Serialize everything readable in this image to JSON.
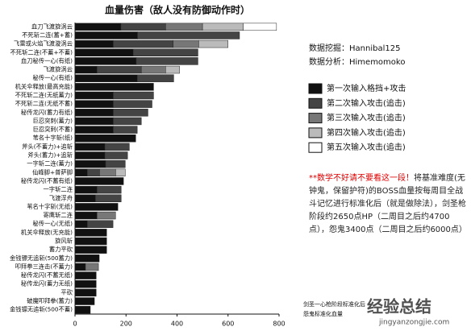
{
  "chart_data": {
    "type": "stacked_barh",
    "title": "血量伤害（敌人没有防御动作时）",
    "categories": [
      "血刀飞渡旋涡云",
      "不死斩二连(蓄+蓄)",
      "飞雷或火焰飞渡漩涡云",
      "不死斩二连(不蓄+不蓄)",
      "血刀秘传一心(有纸)",
      "飞渡旋涡云",
      "秘传一心(有纸)",
      "机关伞释放(最高充能)",
      "不死斩二连(无纸蓄力)",
      "不死斩二连(无纸不蓄)",
      "秘传龙闪(蓄力有纸)",
      "巨忍突刺(蓄力)",
      "巨忍突刺(不蓄)",
      "苇名十字斩(纸)",
      "斧头(不蓄力)+追斩",
      "斧头(蓄力)+追斩",
      "一字斩二连(蓄力)",
      "仙峰脚+普萨脚",
      "秘传龙闪(不蓄有纸)",
      "一字斩二连",
      "飞渡浮舟",
      "苇名十字斩(无纸)",
      "寄鹰斩二连",
      "秘传一心(无纸)",
      "机关伞释放(无充能)",
      "旋风斩",
      "蓄力平砍",
      "金钱镖无追斩(500蓄力)",
      "叩拜拳三连击(不蓄力)",
      "秘传龙闪(不蓄无纸)",
      "秘传龙闪(蓄力无纸)",
      "平砍",
      "破魔叩拜拳(蓄力)",
      "金钱镖无追斩(500不蓄)"
    ],
    "series": [
      {
        "name": "第一次输入格挡+攻击",
        "color": "#111111",
        "values": [
          180,
          245,
          150,
          228,
          240,
          86,
          244,
          308,
          150,
          150,
          150,
          150,
          150,
          238,
          117,
          117,
          120,
          48,
          190,
          86,
          80,
          168,
          86,
          48,
          124,
          124,
          124,
          95,
          41,
          83,
          83,
          83,
          76,
          60
        ]
      },
      {
        "name": "第二次输入攻击(追击)",
        "color": "#444444",
        "values": [
          175,
          400,
          235,
          254,
          242,
          174,
          143,
          null,
          158,
          152,
          136,
          110,
          94,
          null,
          96,
          89,
          77,
          48,
          null,
          95,
          101,
          null,
          null,
          101,
          null,
          null,
          null,
          null,
          null,
          null,
          null,
          null,
          null,
          null
        ]
      },
      {
        "name": "第三次输入攻击(追击)",
        "color": "#777777",
        "values": [
          145,
          null,
          100,
          null,
          null,
          95,
          null,
          null,
          null,
          null,
          null,
          null,
          null,
          null,
          null,
          null,
          null,
          63,
          null,
          null,
          null,
          null,
          73,
          null,
          null,
          null,
          null,
          null,
          51,
          null,
          null,
          null,
          null,
          null
        ]
      },
      {
        "name": "第四次输入攻击(追击)",
        "color": "#bbbbbb",
        "values": [
          160,
          null,
          115,
          null,
          null,
          55,
          null,
          null,
          null,
          null,
          null,
          null,
          null,
          null,
          null,
          null,
          null,
          38,
          null,
          null,
          null,
          null,
          null,
          null,
          null,
          null,
          null,
          null,
          null,
          null,
          null,
          null,
          null,
          null
        ]
      },
      {
        "name": "第五次输入攻击(追击)",
        "color": "#ffffff",
        "values": [
          130,
          null,
          null,
          null,
          null,
          null,
          null,
          null,
          null,
          null,
          null,
          null,
          null,
          null,
          null,
          null,
          null,
          null,
          null,
          null,
          null,
          null,
          null,
          null,
          null,
          null,
          null,
          null,
          null,
          null,
          null,
          null,
          null,
          null
        ]
      }
    ],
    "xlim": [
      0,
      800
    ],
    "xticks": [
      0,
      200,
      400,
      600,
      800
    ],
    "grid": false,
    "data_mining": "数据挖掘：Hannibal125",
    "data_analysis": "数据分析：Himemomoko",
    "note_highlight": "**数学不好请不要看这一段！",
    "note_text": "将基准难度(无钟鬼，保留护符)的BOSS血量按每周目全战斗记忆进行标准化后（就是做除法），剑圣枪阶段约2650点HP（二周目之后约4700点），怨鬼3400点（二周目之后约6000点）",
    "footnotes": [
      "剑圣一心枪阶段标准化后",
      "怨鬼标准化血量"
    ],
    "watermark": "经验总结",
    "watermark_url": "jingyanzongjie.com"
  }
}
